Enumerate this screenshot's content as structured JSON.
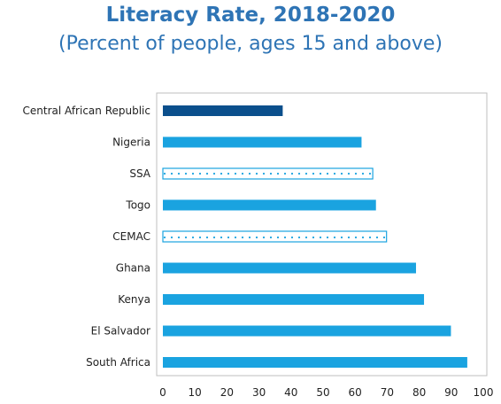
{
  "chart_data": {
    "type": "bar",
    "orientation": "horizontal",
    "title": "Literacy Rate, 2018-2020",
    "subtitle": "(Percent of people, ages 15 and above)",
    "xlabel": "",
    "ylabel": "",
    "categories": [
      "Central African Republic",
      "Nigeria",
      "SSA",
      "Togo",
      "CEMAC",
      "Ghana",
      "Kenya",
      "El Salvador",
      "South Africa"
    ],
    "values": [
      37.4,
      62.0,
      65.5,
      66.5,
      69.8,
      79.0,
      81.5,
      89.9,
      95.0
    ],
    "bar_styles": [
      "solid-dark",
      "solid",
      "dotted",
      "solid",
      "dotted",
      "solid",
      "solid",
      "solid",
      "solid"
    ],
    "xlim": [
      0,
      100
    ],
    "xticks": [
      0,
      10,
      20,
      30,
      40,
      50,
      60,
      70,
      80,
      90,
      100
    ],
    "grid": false,
    "legend": "none",
    "colors": {
      "highlight": "#0b4f8c",
      "bar": "#1aa3e0",
      "dotted_border": "#1aa3e0",
      "title": "#2e74b5"
    }
  }
}
